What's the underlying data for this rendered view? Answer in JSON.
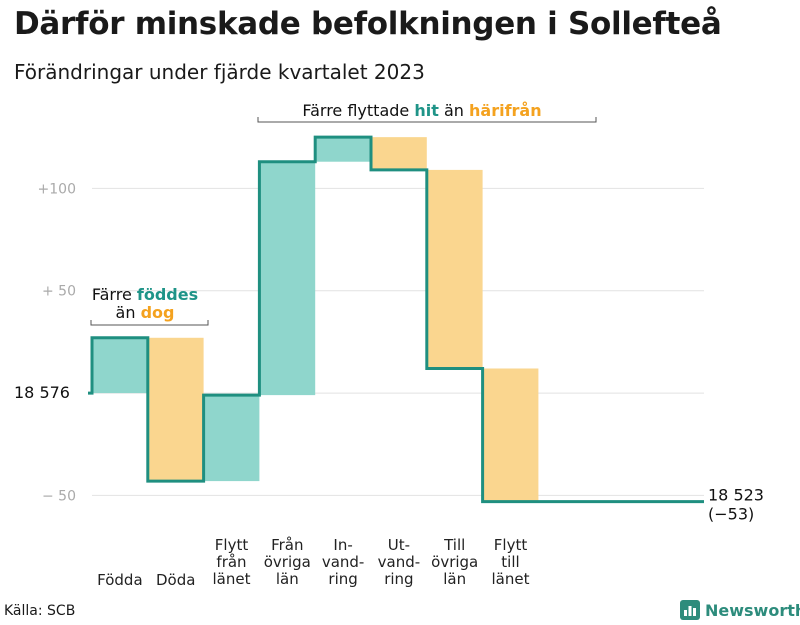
{
  "title": "Därför minskade befolkningen i Sollefteå",
  "subtitle": "Förändringar under fjärde kvartalet 2023",
  "source": "Källa: SCB",
  "brand": {
    "name": "Newsworthy",
    "icon": "bar-chart-logo-icon"
  },
  "colors": {
    "increase": "#8fd6cc",
    "decrease": "#fad68f",
    "line": "#1f8f80",
    "accent_green": "#1f9488",
    "accent_orange": "#f4a21f",
    "grid": "#e2e2e2",
    "tick": "#aaaaaa"
  },
  "annotations": {
    "births": {
      "pre": "Färre",
      "hl1": "föddes",
      "mid": "än",
      "hl2": "dog"
    },
    "moves": {
      "pre": "Färre flyttade",
      "hl1": "hit",
      "mid": "än",
      "hl2": "härifrån"
    }
  },
  "chart_data": {
    "type": "waterfall",
    "start_label": "18  576",
    "start_value": 18576,
    "end_label": "18 523",
    "end_change_label": "(−53)",
    "end_value": 18523,
    "yticks": [
      {
        "value": 100,
        "label": "+100"
      },
      {
        "value": 50,
        "label": "+  50"
      },
      {
        "value": -50,
        "label": "−  50"
      }
    ],
    "ylim": [
      -62,
      128
    ],
    "steps": [
      {
        "label": [
          "Födda"
        ],
        "change": 27
      },
      {
        "label": [
          "Döda"
        ],
        "change": -70
      },
      {
        "label": [
          "Flytt",
          "från",
          "länet"
        ],
        "change": 42
      },
      {
        "label": [
          "Från",
          "övriga",
          "län"
        ],
        "change": 114
      },
      {
        "label": [
          "In-",
          "vand-",
          "ring"
        ],
        "change": 12
      },
      {
        "label": [
          "Ut-",
          "vand-",
          "ring"
        ],
        "change": -16
      },
      {
        "label": [
          "Till",
          "övriga",
          "län"
        ],
        "change": -97
      },
      {
        "label": [
          "Flytt",
          "till",
          "länet"
        ],
        "change": -65
      }
    ]
  }
}
